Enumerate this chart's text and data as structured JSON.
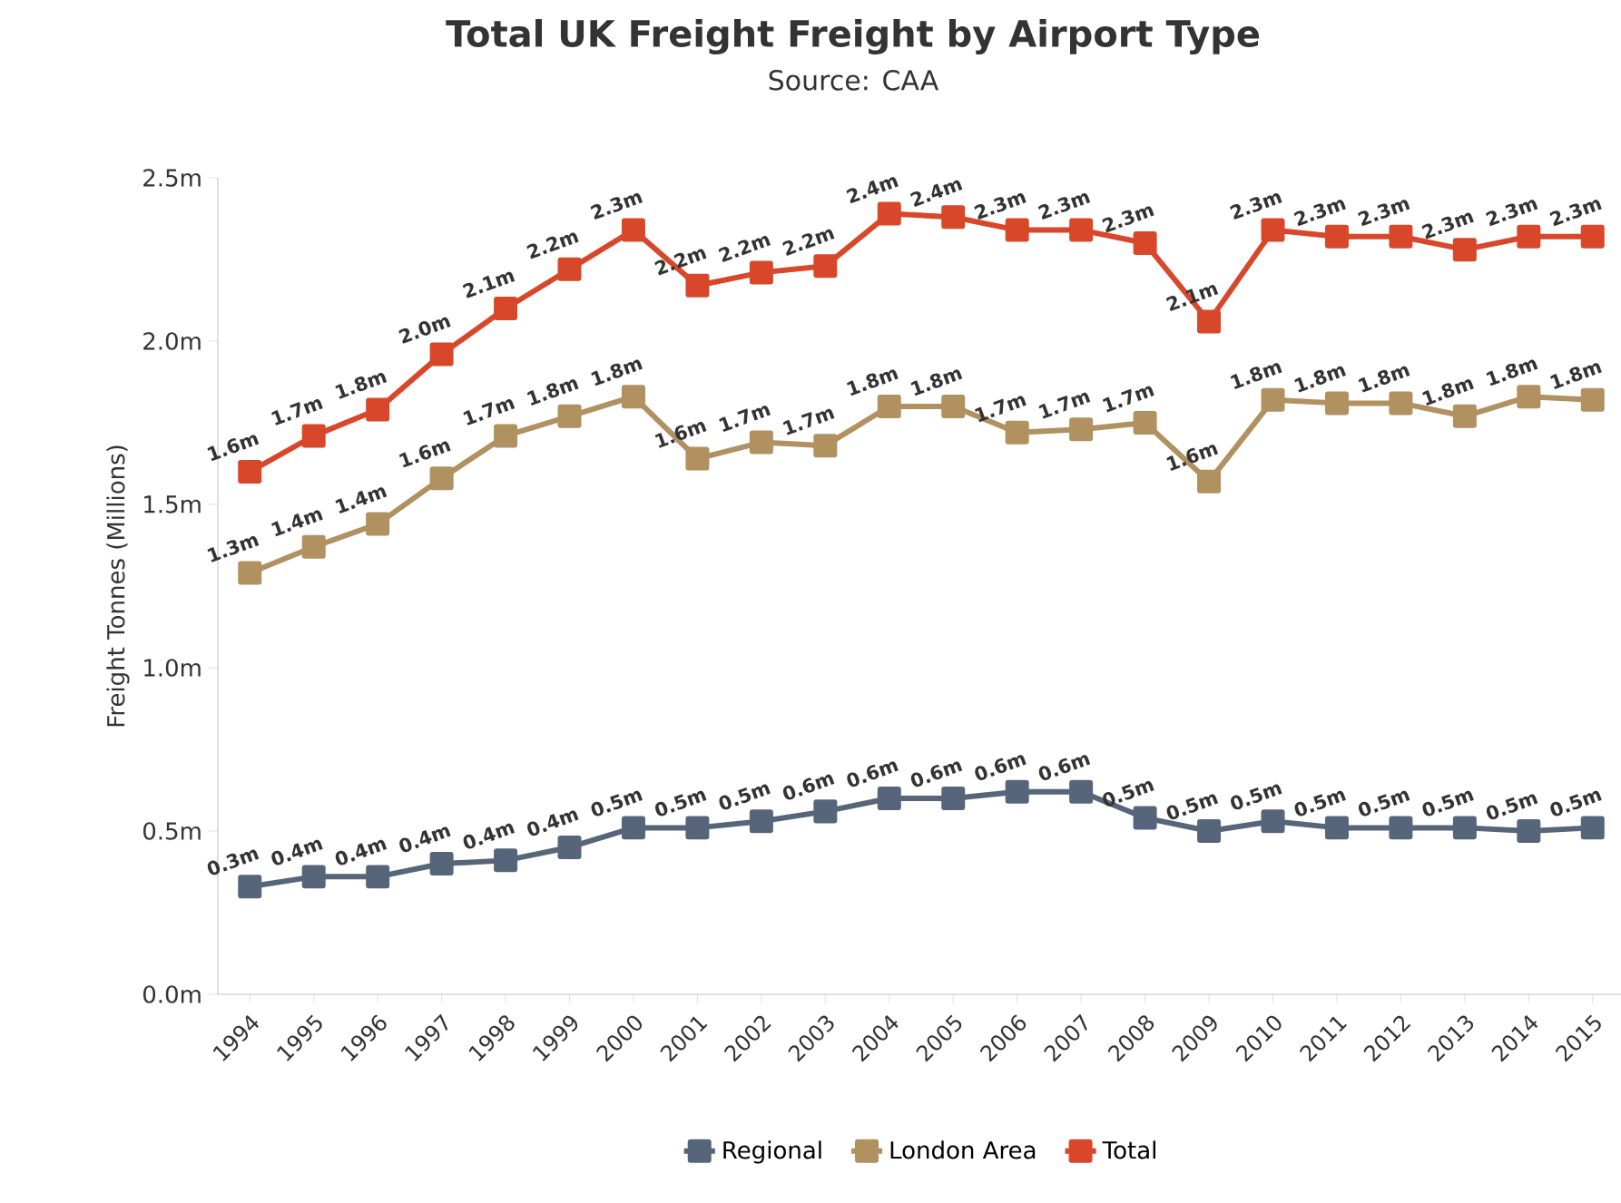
{
  "chart_data": {
    "type": "line",
    "title": "Total UK Freight Freight by Airport Type",
    "subtitle": "Source: CAA",
    "ylabel": "Freight Tonnes (Millions)",
    "categories": [
      "1994",
      "1995",
      "1996",
      "1997",
      "1998",
      "1999",
      "2000",
      "2001",
      "2002",
      "2003",
      "2004",
      "2005",
      "2006",
      "2007",
      "2008",
      "2009",
      "2010",
      "2011",
      "2012",
      "2013",
      "2014",
      "2015"
    ],
    "ylim": [
      0,
      2.5
    ],
    "yticks": [
      {
        "value": 0,
        "label": "0.0m"
      },
      {
        "value": 0.5,
        "label": "0.5m"
      },
      {
        "value": 1.0,
        "label": "1.0m"
      },
      {
        "value": 1.5,
        "label": "1.5m"
      },
      {
        "value": 2.0,
        "label": "2.0m"
      },
      {
        "value": 2.5,
        "label": "2.5m"
      }
    ],
    "marker": "square",
    "legend": "bottom",
    "grid": false,
    "series": [
      {
        "name": "Regional",
        "color": "#56657a",
        "values": [
          0.33,
          0.36,
          0.36,
          0.4,
          0.41,
          0.45,
          0.51,
          0.51,
          0.53,
          0.56,
          0.6,
          0.6,
          0.62,
          0.62,
          0.54,
          0.5,
          0.53,
          0.51,
          0.51,
          0.51,
          0.5,
          0.51
        ],
        "value_labels": [
          "0.3m",
          "0.4m",
          "0.4m",
          "0.4m",
          "0.4m",
          "0.4m",
          "0.5m",
          "0.5m",
          "0.5m",
          "0.6m",
          "0.6m",
          "0.6m",
          "0.6m",
          "0.6m",
          "0.5m",
          "0.5m",
          "0.5m",
          "0.5m",
          "0.5m",
          "0.5m",
          "0.5m",
          "0.5m"
        ]
      },
      {
        "name": "London Area",
        "color": "#b0915f",
        "values": [
          1.29,
          1.37,
          1.44,
          1.58,
          1.71,
          1.77,
          1.83,
          1.64,
          1.69,
          1.68,
          1.8,
          1.8,
          1.72,
          1.73,
          1.75,
          1.57,
          1.82,
          1.81,
          1.81,
          1.77,
          1.83,
          1.82
        ],
        "value_labels": [
          "1.3m",
          "1.4m",
          "1.4m",
          "1.6m",
          "1.7m",
          "1.8m",
          "1.8m",
          "1.6m",
          "1.7m",
          "1.7m",
          "1.8m",
          "1.8m",
          "1.7m",
          "1.7m",
          "1.7m",
          "1.6m",
          "1.8m",
          "1.8m",
          "1.8m",
          "1.8m",
          "1.8m",
          "1.8m"
        ]
      },
      {
        "name": "Total",
        "color": "#d9472b",
        "values": [
          1.6,
          1.71,
          1.79,
          1.96,
          2.1,
          2.22,
          2.34,
          2.17,
          2.21,
          2.23,
          2.39,
          2.38,
          2.34,
          2.34,
          2.3,
          2.06,
          2.34,
          2.32,
          2.32,
          2.28,
          2.32,
          2.32
        ],
        "value_labels": [
          "1.6m",
          "1.7m",
          "1.8m",
          "2.0m",
          "2.1m",
          "2.2m",
          "2.3m",
          "2.2m",
          "2.2m",
          "2.2m",
          "2.4m",
          "2.4m",
          "2.3m",
          "2.3m",
          "2.3m",
          "2.1m",
          "2.3m",
          "2.3m",
          "2.3m",
          "2.3m",
          "2.3m",
          "2.3m"
        ]
      }
    ]
  }
}
